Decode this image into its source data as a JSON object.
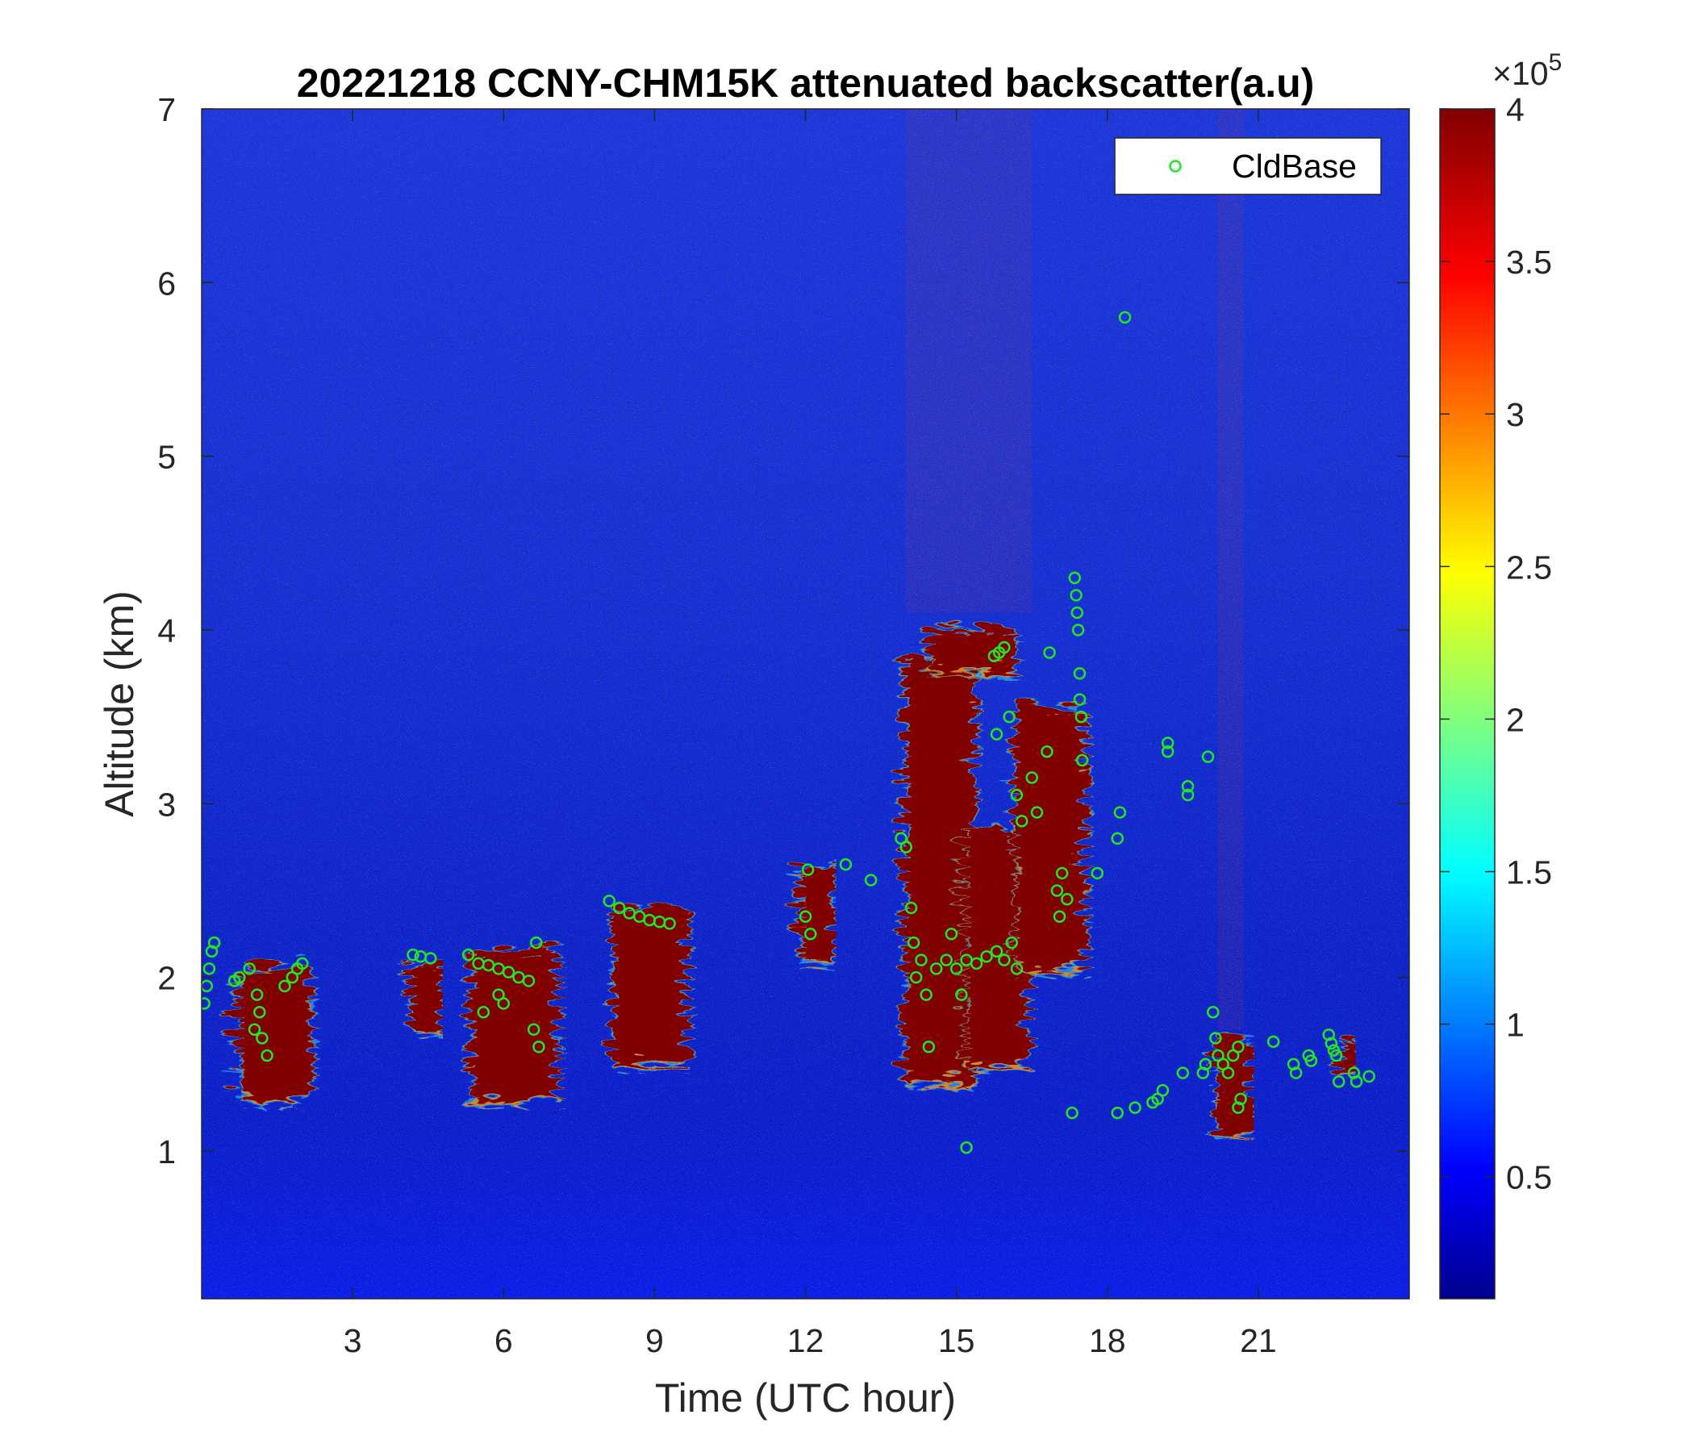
{
  "chart_data": {
    "type": "heatmap",
    "title": "20221218 CCNY-CHM15K attenuated backscatter(a.u)",
    "xlabel": "Time (UTC hour)",
    "ylabel": "Altitude (km)",
    "xlim": [
      0,
      24
    ],
    "ylim": [
      0.15,
      7
    ],
    "xticks": [
      3,
      6,
      9,
      12,
      15,
      18,
      21
    ],
    "xtick_labels": [
      "3",
      "6",
      "9",
      "12",
      "15",
      "18",
      "21"
    ],
    "yticks": [
      1,
      2,
      3,
      4,
      5,
      6,
      7
    ],
    "ytick_labels": [
      "1",
      "2",
      "3",
      "4",
      "5",
      "6",
      "7"
    ],
    "colorbar": {
      "colormap": "jet",
      "range": [
        0.1,
        4
      ],
      "ticks": [
        0.5,
        1,
        1.5,
        2,
        2.5,
        3,
        3.5,
        4
      ],
      "tick_labels": [
        "0.5",
        "1",
        "1.5",
        "2",
        "2.5",
        "3",
        "3.5",
        "4"
      ],
      "multiplier": "×10",
      "multiplier_exponent": "5"
    },
    "legend": {
      "position": "top-right",
      "entries": [
        "CldBase"
      ]
    },
    "grid": false,
    "cloud_layers": [
      {
        "t_start": 0.55,
        "t_end": 2.0,
        "top": 2.1,
        "bottom": 1.35
      },
      {
        "t_start": 4.0,
        "t_end": 4.6,
        "top": 2.12,
        "bottom": 1.75
      },
      {
        "t_start": 5.2,
        "t_end": 6.9,
        "top": 2.2,
        "bottom": 1.35
      },
      {
        "t_start": 8.0,
        "t_end": 9.5,
        "top": 2.45,
        "bottom": 1.55
      },
      {
        "t_start": 11.7,
        "t_end": 12.4,
        "top": 2.7,
        "bottom": 2.15
      },
      {
        "t_start": 13.8,
        "t_end": 15.2,
        "top": 3.9,
        "bottom": 1.45
      },
      {
        "t_start": 14.3,
        "t_end": 16.0,
        "top": 4.05,
        "bottom": 3.8
      },
      {
        "t_start": 15.0,
        "t_end": 16.3,
        "top": 2.9,
        "bottom": 1.55
      },
      {
        "t_start": 16.0,
        "t_end": 17.4,
        "top": 3.6,
        "bottom": 2.1
      },
      {
        "t_start": 20.0,
        "t_end": 20.7,
        "top": 1.7,
        "bottom": 1.15
      },
      {
        "t_start": 22.5,
        "t_end": 22.8,
        "top": 1.7,
        "bottom": 1.5
      }
    ],
    "aerosol_plumes": [
      {
        "t_start": 14.0,
        "t_end": 16.5,
        "top": 7.0,
        "bottom": 4.1
      },
      {
        "t_start": 20.2,
        "t_end": 20.7,
        "top": 7.0,
        "bottom": 1.7
      }
    ],
    "series": [
      {
        "name": "CldBase",
        "marker": "circle",
        "color": "#22e622",
        "points": [
          [
            0.05,
            1.85
          ],
          [
            0.1,
            1.95
          ],
          [
            0.15,
            2.05
          ],
          [
            0.2,
            2.15
          ],
          [
            0.25,
            2.2
          ],
          [
            0.65,
            1.98
          ],
          [
            0.75,
            2.0
          ],
          [
            0.95,
            2.05
          ],
          [
            1.05,
            1.7
          ],
          [
            1.15,
            1.8
          ],
          [
            1.2,
            1.65
          ],
          [
            1.3,
            1.55
          ],
          [
            1.1,
            1.9
          ],
          [
            1.65,
            1.95
          ],
          [
            1.8,
            2.0
          ],
          [
            1.9,
            2.05
          ],
          [
            2.0,
            2.08
          ],
          [
            4.2,
            2.13
          ],
          [
            4.35,
            2.12
          ],
          [
            4.55,
            2.11
          ],
          [
            5.3,
            2.13
          ],
          [
            5.5,
            2.08
          ],
          [
            5.7,
            2.07
          ],
          [
            5.9,
            2.05
          ],
          [
            6.1,
            2.03
          ],
          [
            6.3,
            2.0
          ],
          [
            6.5,
            1.98
          ],
          [
            5.6,
            1.8
          ],
          [
            5.9,
            1.9
          ],
          [
            6.0,
            1.85
          ],
          [
            6.6,
            1.7
          ],
          [
            6.7,
            1.6
          ],
          [
            6.65,
            2.2
          ],
          [
            8.1,
            2.44
          ],
          [
            8.3,
            2.4
          ],
          [
            8.5,
            2.37
          ],
          [
            8.7,
            2.35
          ],
          [
            8.9,
            2.33
          ],
          [
            9.1,
            2.32
          ],
          [
            9.3,
            2.31
          ],
          [
            12.05,
            2.62
          ],
          [
            12.0,
            2.35
          ],
          [
            12.1,
            2.25
          ],
          [
            12.8,
            2.65
          ],
          [
            13.3,
            2.56
          ],
          [
            13.9,
            2.8
          ],
          [
            14.0,
            2.75
          ],
          [
            14.1,
            2.4
          ],
          [
            14.15,
            2.2
          ],
          [
            14.2,
            2.0
          ],
          [
            14.3,
            2.1
          ],
          [
            14.4,
            1.9
          ],
          [
            14.45,
            1.6
          ],
          [
            14.6,
            2.05
          ],
          [
            14.8,
            2.1
          ],
          [
            15.0,
            2.05
          ],
          [
            15.2,
            2.1
          ],
          [
            15.4,
            2.08
          ],
          [
            15.6,
            2.12
          ],
          [
            15.8,
            2.15
          ],
          [
            15.95,
            2.1
          ],
          [
            15.2,
            1.02
          ],
          [
            15.1,
            1.9
          ],
          [
            14.9,
            2.25
          ],
          [
            15.75,
            3.85
          ],
          [
            15.85,
            3.87
          ],
          [
            15.95,
            3.9
          ],
          [
            16.05,
            3.5
          ],
          [
            16.2,
            3.05
          ],
          [
            16.3,
            2.9
          ],
          [
            15.8,
            3.4
          ],
          [
            16.1,
            2.2
          ],
          [
            16.2,
            2.05
          ],
          [
            16.5,
            3.15
          ],
          [
            16.6,
            2.95
          ],
          [
            16.8,
            3.3
          ],
          [
            17.0,
            2.5
          ],
          [
            17.05,
            2.35
          ],
          [
            17.1,
            2.6
          ],
          [
            17.2,
            2.45
          ],
          [
            16.85,
            3.87
          ],
          [
            17.35,
            4.3
          ],
          [
            17.38,
            4.2
          ],
          [
            17.4,
            4.1
          ],
          [
            17.42,
            4.0
          ],
          [
            17.45,
            3.75
          ],
          [
            17.45,
            3.6
          ],
          [
            17.48,
            3.5
          ],
          [
            17.5,
            3.25
          ],
          [
            17.3,
            1.22
          ],
          [
            17.8,
            2.6
          ],
          [
            18.2,
            2.8
          ],
          [
            18.25,
            2.95
          ],
          [
            18.2,
            1.22
          ],
          [
            18.35,
            5.8
          ],
          [
            18.55,
            1.25
          ],
          [
            18.9,
            1.28
          ],
          [
            19.0,
            1.3
          ],
          [
            19.1,
            1.35
          ],
          [
            19.2,
            3.3
          ],
          [
            19.2,
            3.35
          ],
          [
            19.5,
            1.45
          ],
          [
            19.6,
            3.05
          ],
          [
            19.6,
            3.1
          ],
          [
            19.9,
            1.45
          ],
          [
            19.95,
            1.5
          ],
          [
            20.0,
            3.27
          ],
          [
            20.1,
            1.8
          ],
          [
            20.15,
            1.65
          ],
          [
            20.2,
            1.55
          ],
          [
            20.3,
            1.5
          ],
          [
            20.4,
            1.45
          ],
          [
            20.5,
            1.55
          ],
          [
            20.6,
            1.6
          ],
          [
            20.65,
            1.3
          ],
          [
            20.6,
            1.25
          ],
          [
            21.3,
            1.63
          ],
          [
            21.7,
            1.5
          ],
          [
            21.75,
            1.45
          ],
          [
            22.0,
            1.55
          ],
          [
            22.05,
            1.52
          ],
          [
            22.4,
            1.67
          ],
          [
            22.45,
            1.62
          ],
          [
            22.5,
            1.58
          ],
          [
            22.55,
            1.55
          ],
          [
            22.6,
            1.4
          ],
          [
            22.9,
            1.45
          ],
          [
            22.95,
            1.4
          ],
          [
            23.2,
            1.43
          ]
        ]
      }
    ]
  }
}
